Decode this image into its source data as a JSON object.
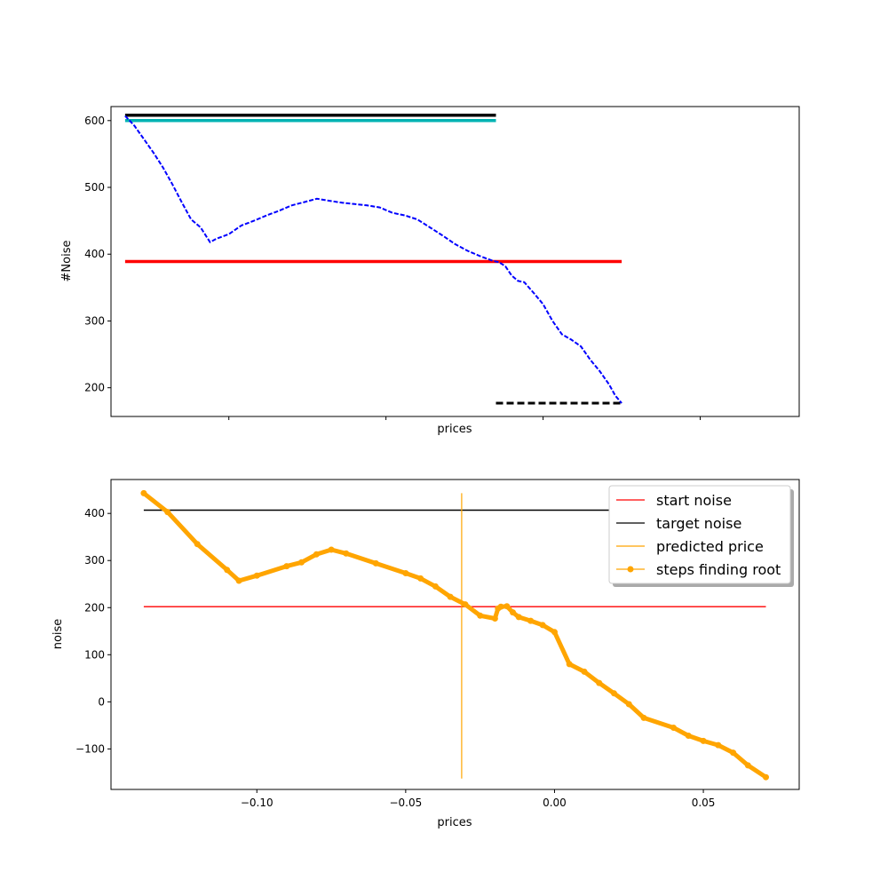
{
  "chart_data": [
    {
      "type": "line",
      "xlabel": "prices",
      "ylabel": "#Noise",
      "xlim": [
        -0.1375,
        0.0815
      ],
      "ylim": [
        157,
        621
      ],
      "xticks": [
        -0.1,
        -0.05,
        0.0,
        0.05
      ],
      "xtick_labels_visible": false,
      "yticks": [
        200,
        300,
        400,
        500,
        600
      ],
      "ytick_labels": [
        "200",
        "300",
        "400",
        "500",
        "600"
      ],
      "grid": false,
      "legend": "none",
      "series": [
        {
          "style": "solid",
          "color": "#000000",
          "x": [
            -0.133,
            -0.015
          ],
          "y": [
            608,
            608
          ]
        },
        {
          "style": "solid",
          "color": "#00b3b3",
          "x": [
            -0.133,
            -0.015
          ],
          "y": [
            600,
            600
          ]
        },
        {
          "style": "solid",
          "color": "#ff0000",
          "x": [
            -0.133,
            0.025
          ],
          "y": [
            389,
            389
          ]
        },
        {
          "style": "dashed",
          "color": "#000000",
          "x": [
            -0.015,
            0.025
          ],
          "y": [
            177,
            177
          ]
        },
        {
          "style": "dotted",
          "color": "#0000ff",
          "x": [
            -0.133,
            -0.13,
            -0.127,
            -0.124,
            -0.121,
            -0.118,
            -0.115,
            -0.112,
            -0.109,
            -0.106,
            -0.104,
            -0.1,
            -0.096,
            -0.092,
            -0.088,
            -0.084,
            -0.08,
            -0.076,
            -0.072,
            -0.068,
            -0.064,
            -0.06,
            -0.056,
            -0.052,
            -0.048,
            -0.044,
            -0.04,
            -0.036,
            -0.032,
            -0.028,
            -0.024,
            -0.02,
            -0.016,
            -0.014,
            -0.012,
            -0.01,
            -0.008,
            -0.006,
            -0.003,
            0.0,
            0.003,
            0.006,
            0.009,
            0.012,
            0.015,
            0.018,
            0.021,
            0.023,
            0.025
          ],
          "y": [
            607,
            592,
            572,
            552,
            530,
            505,
            478,
            452,
            440,
            418,
            423,
            430,
            443,
            450,
            458,
            465,
            473,
            478,
            483,
            480,
            477,
            475,
            473,
            470,
            462,
            458,
            452,
            440,
            428,
            415,
            405,
            397,
            390,
            388,
            382,
            368,
            360,
            358,
            342,
            325,
            300,
            280,
            272,
            262,
            242,
            225,
            205,
            188,
            177
          ]
        }
      ]
    },
    {
      "type": "line",
      "xlabel": "prices",
      "ylabel": "noise",
      "xlim": [
        -0.149,
        0.0822
      ],
      "ylim": [
        -186,
        472
      ],
      "xticks": [
        -0.1,
        -0.05,
        0.0,
        0.05
      ],
      "xtick_labels": [
        "−0.10",
        "−0.05",
        "0.00",
        "0.05"
      ],
      "yticks": [
        -100,
        0,
        100,
        200,
        300,
        400
      ],
      "ytick_labels": [
        "−100",
        "0",
        "100",
        "200",
        "300",
        "400"
      ],
      "grid": false,
      "legend": "top-right",
      "series": [
        {
          "name": "start noise",
          "color": "#ff0000",
          "style": "solid",
          "x": [
            -0.138,
            0.071
          ],
          "y": [
            202,
            202
          ]
        },
        {
          "name": "target noise",
          "color": "#000000",
          "style": "solid",
          "x": [
            -0.138,
            0.071
          ],
          "y": [
            407,
            407
          ]
        },
        {
          "name": "predicted price",
          "color": "#ffa500",
          "style": "solid",
          "x": [
            -0.0312,
            -0.0312
          ],
          "y": [
            443,
            -163
          ]
        },
        {
          "name": "steps finding root",
          "color": "#ffa500",
          "style": "marker",
          "x": [
            -0.138,
            -0.13,
            -0.12,
            -0.11,
            -0.106,
            -0.1,
            -0.09,
            -0.085,
            -0.08,
            -0.075,
            -0.07,
            -0.06,
            -0.05,
            -0.045,
            -0.04,
            -0.035,
            -0.03,
            -0.025,
            -0.02,
            -0.019,
            -0.018,
            -0.016,
            -0.014,
            -0.012,
            -0.008,
            -0.004,
            0.0,
            0.005,
            0.01,
            0.015,
            0.02,
            0.025,
            0.03,
            0.04,
            0.045,
            0.05,
            0.055,
            0.06,
            0.065,
            0.071
          ],
          "y": [
            443,
            403,
            335,
            280,
            257,
            268,
            288,
            296,
            313,
            323,
            315,
            294,
            273,
            262,
            245,
            223,
            207,
            183,
            177,
            198,
            202,
            203,
            190,
            180,
            172,
            163,
            148,
            80,
            64,
            40,
            18,
            -5,
            -34,
            -55,
            -72,
            -83,
            -92,
            -108,
            -135,
            -160
          ]
        }
      ]
    }
  ]
}
